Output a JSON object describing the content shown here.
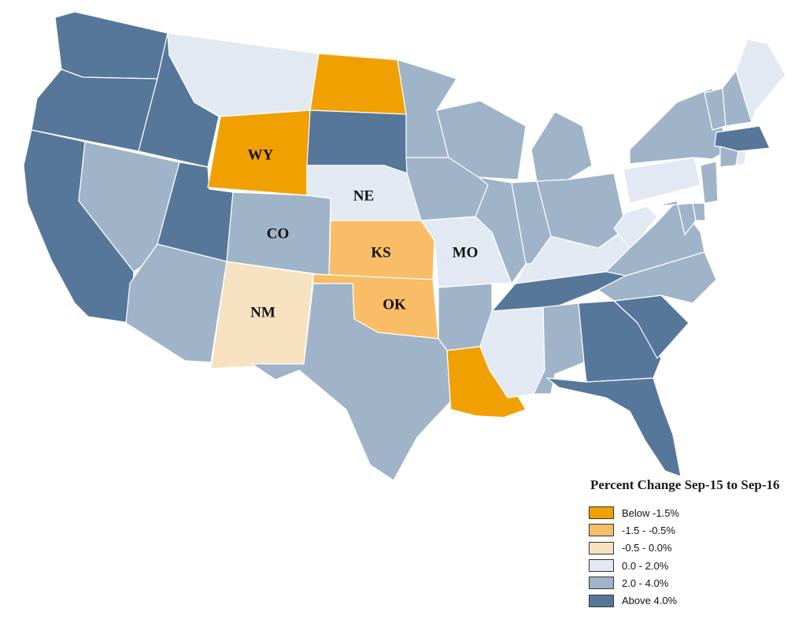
{
  "legend": {
    "title": "Percent Change Sep-15 to Sep-16",
    "classes": [
      {
        "key": "c1",
        "label": "Below -1.5%",
        "color": "#f0a000"
      },
      {
        "key": "c2",
        "label": "-1.5 - -0.5%",
        "color": "#f8bd66"
      },
      {
        "key": "c3",
        "label": "-0.5 - 0.0%",
        "color": "#f6e2c0"
      },
      {
        "key": "c4",
        "label": "0.0 - 2.0%",
        "color": "#e2e9f3"
      },
      {
        "key": "c5",
        "label": "2.0 - 4.0%",
        "color": "#9fb4c8"
      },
      {
        "key": "c6",
        "label": "Above 4.0%",
        "color": "#56779a"
      }
    ]
  },
  "state_labels": {
    "WY": "WY",
    "NE": "NE",
    "CO": "CO",
    "KS": "KS",
    "MO": "MO",
    "NM": "NM",
    "OK": "OK"
  },
  "state_classes": {
    "WA": "c6",
    "OR": "c6",
    "CA": "c6",
    "ID": "c6",
    "NV": "c5",
    "UT": "c6",
    "AZ": "c5",
    "MT": "c4",
    "WY": "c1",
    "CO": "c5",
    "NM": "c3",
    "ND": "c1",
    "SD": "c6",
    "NE": "c4",
    "KS": "c2",
    "OK": "c2",
    "TX": "c5",
    "MN": "c5",
    "IA": "c5",
    "MO": "c4",
    "AR": "c5",
    "LA": "c1",
    "WI": "c5",
    "IL": "c5",
    "MI": "c5",
    "IN": "c5",
    "OH": "c5",
    "KY": "c4",
    "TN": "c6",
    "MS": "c4",
    "AL": "c5",
    "GA": "c6",
    "FL": "c6",
    "SC": "c6",
    "NC": "c5",
    "VA": "c5",
    "WV": "c4",
    "PA": "c4",
    "NY": "c5",
    "VT": "c5",
    "NH": "c5",
    "ME": "c4",
    "MA": "c6",
    "CT": "c5",
    "RI": "c4",
    "NJ": "c5",
    "DE": "c5",
    "MD": "c5"
  }
}
